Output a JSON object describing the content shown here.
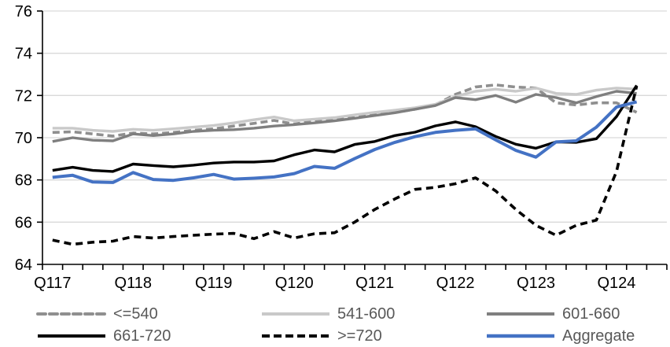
{
  "chart_data": {
    "type": "line",
    "title": "",
    "xlabel": "",
    "ylabel": "",
    "ylim": [
      64,
      76
    ],
    "y_ticks": [
      64,
      66,
      68,
      70,
      72,
      74,
      76
    ],
    "grid": "horizontal",
    "legend_position": "bottom",
    "x_categories": [
      "Q117",
      "Q217",
      "Q317",
      "Q417",
      "Q118",
      "Q218",
      "Q318",
      "Q418",
      "Q119",
      "Q219",
      "Q319",
      "Q419",
      "Q120",
      "Q220",
      "Q320",
      "Q420",
      "Q121",
      "Q221",
      "Q321",
      "Q421",
      "Q122",
      "Q222",
      "Q322",
      "Q422",
      "Q123",
      "Q223",
      "Q323",
      "Q423",
      "Q124",
      "Q224"
    ],
    "x_tick_labels": [
      "Q117",
      "Q118",
      "Q119",
      "Q120",
      "Q121",
      "Q122",
      "Q123",
      "Q124"
    ],
    "series": [
      {
        "name": "<=540",
        "color": "#8f8f8f",
        "style": "dashed",
        "values": [
          70.25,
          70.28,
          70.18,
          70.08,
          70.22,
          70.18,
          70.25,
          70.35,
          70.42,
          70.55,
          70.68,
          70.82,
          70.65,
          70.78,
          70.85,
          70.95,
          71.1,
          71.2,
          71.35,
          71.55,
          72.05,
          72.4,
          72.5,
          72.4,
          72.35,
          71.65,
          71.55,
          71.65,
          71.65,
          71.2
        ]
      },
      {
        "name": "541-600",
        "color": "#c9c9c9",
        "style": "solid",
        "values": [
          70.45,
          70.45,
          70.35,
          70.3,
          70.4,
          70.35,
          70.42,
          70.5,
          70.58,
          70.7,
          70.85,
          70.98,
          70.8,
          70.88,
          70.95,
          71.08,
          71.2,
          71.3,
          71.42,
          71.58,
          71.95,
          72.2,
          72.3,
          72.2,
          72.35,
          72.1,
          72.05,
          72.25,
          72.35,
          72.3
        ]
      },
      {
        "name": "601-660",
        "color": "#7f7f7f",
        "style": "solid",
        "values": [
          69.82,
          70.0,
          69.88,
          69.85,
          70.18,
          70.1,
          70.18,
          70.3,
          70.35,
          70.38,
          70.45,
          70.55,
          70.62,
          70.7,
          70.8,
          70.92,
          71.05,
          71.18,
          71.35,
          71.52,
          71.9,
          71.8,
          72.0,
          71.68,
          72.05,
          71.9,
          71.65,
          71.95,
          72.2,
          72.1
        ]
      },
      {
        "name": "661-720",
        "color": "#000000",
        "style": "solid",
        "values": [
          68.45,
          68.6,
          68.45,
          68.4,
          68.75,
          68.68,
          68.62,
          68.7,
          68.8,
          68.85,
          68.85,
          68.9,
          69.19,
          69.42,
          69.33,
          69.68,
          69.82,
          70.1,
          70.26,
          70.56,
          70.75,
          70.52,
          70.06,
          69.69,
          69.5,
          69.8,
          69.78,
          69.95,
          71.0,
          72.48
        ]
      },
      {
        "name": ">=720",
        "color": "#000000",
        "style": "dashed",
        "values": [
          65.15,
          64.95,
          65.05,
          65.1,
          65.32,
          65.25,
          65.32,
          65.38,
          65.43,
          65.47,
          65.22,
          65.55,
          65.25,
          65.45,
          65.5,
          66.0,
          66.6,
          67.1,
          67.55,
          67.65,
          67.82,
          68.1,
          67.48,
          66.6,
          65.85,
          65.38,
          65.85,
          66.1,
          68.4,
          72.45
        ]
      },
      {
        "name": "Aggregate",
        "color": "#4472c4",
        "style": "solid",
        "values": [
          68.12,
          68.22,
          67.9,
          67.88,
          68.35,
          68.02,
          67.98,
          68.1,
          68.26,
          68.04,
          68.08,
          68.14,
          68.3,
          68.64,
          68.55,
          69.01,
          69.44,
          69.78,
          70.05,
          70.25,
          70.35,
          70.42,
          69.9,
          69.4,
          69.08,
          69.8,
          69.85,
          70.5,
          71.45,
          71.7
        ]
      }
    ]
  },
  "colors": {
    "background": "#ffffff",
    "gridline": "#d9d9d9",
    "axis": "#000000",
    "axis_label": "#000000",
    "legend_text": "#595959"
  }
}
